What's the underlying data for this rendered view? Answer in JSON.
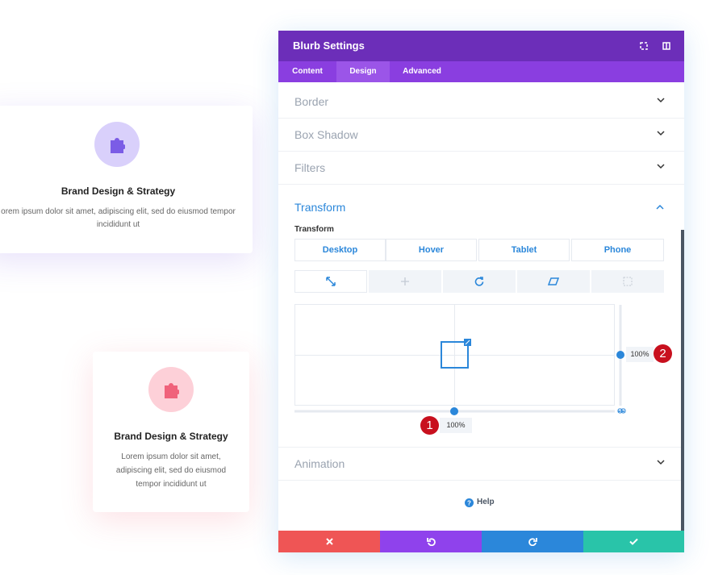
{
  "cards": [
    {
      "title": "Brand Design & Strategy",
      "lines": [
        "orem ipsum dolor sit amet, adipiscing elit, sed do eiusmod tempor",
        "incididunt ut"
      ]
    },
    {
      "title": "Brand Design & Strategy",
      "lines": [
        "Lorem ipsum dolor sit amet,",
        "adipiscing elit, sed do eiusmod",
        "tempor incididunt ut"
      ]
    }
  ],
  "panel": {
    "title": "Blurb Settings",
    "tabs": [
      "Content",
      "Design",
      "Advanced"
    ],
    "sections": [
      "Border",
      "Box Shadow",
      "Filters",
      "Transform",
      "Animation"
    ],
    "transform": {
      "label": "Transform",
      "devices": [
        "Desktop",
        "Hover",
        "Tablet",
        "Phone"
      ],
      "x_value": "100%",
      "y_value": "100%",
      "badges": [
        "1",
        "2"
      ]
    },
    "help": "Help"
  }
}
